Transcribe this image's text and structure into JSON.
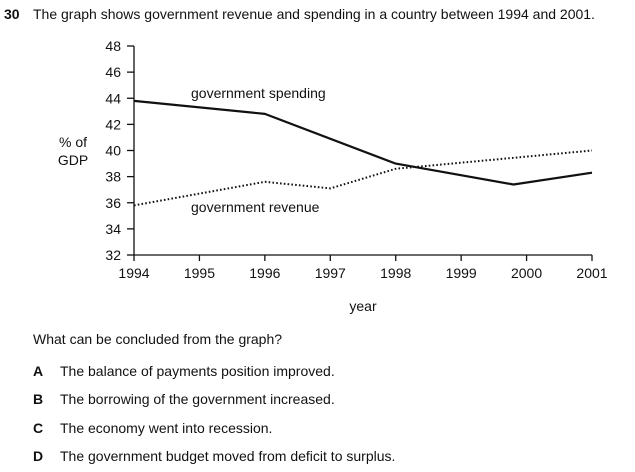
{
  "question": {
    "number": "30",
    "text": "The graph shows government revenue and spending in a country between 1994 and 2001.",
    "prompt": "What can be concluded from the graph?",
    "options": [
      {
        "letter": "A",
        "text": "The balance of payments position improved."
      },
      {
        "letter": "B",
        "text": "The borrowing of the government increased."
      },
      {
        "letter": "C",
        "text": "The economy went into recession."
      },
      {
        "letter": "D",
        "text": "The government budget moved from deficit to surplus."
      }
    ]
  },
  "chart_data": {
    "type": "line",
    "title": "",
    "xlabel": "year",
    "ylabel": "% of GDP",
    "ylabel_lines": [
      "% of",
      "GDP"
    ],
    "xlim": [
      1994,
      2001
    ],
    "ylim": [
      32,
      48
    ],
    "xticks": [
      1994,
      1995,
      1996,
      1997,
      1998,
      1999,
      2000,
      2001
    ],
    "yticks": [
      32,
      34,
      36,
      38,
      40,
      42,
      44,
      46,
      48
    ],
    "grid": false,
    "series": [
      {
        "name": "government spending",
        "style": "solid",
        "color": "#111111",
        "x": [
          1994,
          1996,
          1998,
          1999.8,
          2001
        ],
        "y": [
          43.8,
          42.8,
          39.0,
          37.4,
          38.3
        ]
      },
      {
        "name": "government revenue",
        "style": "dotted",
        "color": "#111111",
        "x": [
          1994,
          1996,
          1997,
          1998,
          2001
        ],
        "y": [
          35.8,
          37.6,
          37.1,
          38.6,
          40.0
        ]
      }
    ]
  }
}
